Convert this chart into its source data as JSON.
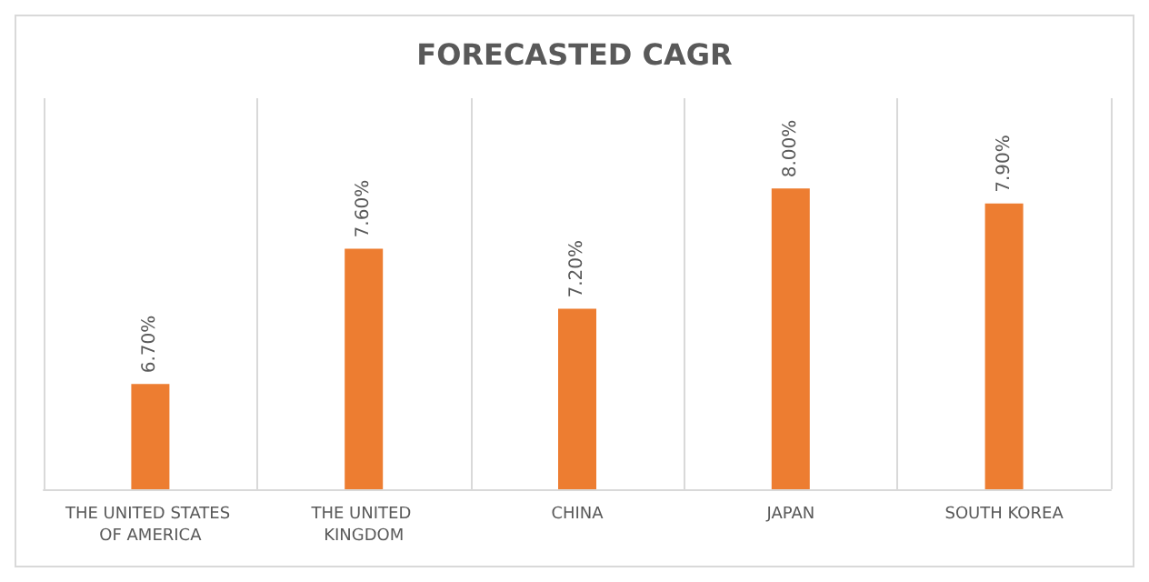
{
  "chart_data": {
    "type": "bar",
    "title": "FORECASTED CAGR",
    "categories": [
      "THE UNITED STATES OF AMERICA",
      "THE UNITED KINGDOM",
      "CHINA",
      "JAPAN",
      "SOUTH KOREA"
    ],
    "values": [
      6.7,
      7.6,
      7.2,
      8.0,
      7.9
    ],
    "value_labels": [
      "6.70%",
      "7.60%",
      "7.20%",
      "8.00%",
      "7.90%"
    ],
    "color": "#ed7d31",
    "ylim": [
      6,
      8.6
    ],
    "grid": "x"
  }
}
